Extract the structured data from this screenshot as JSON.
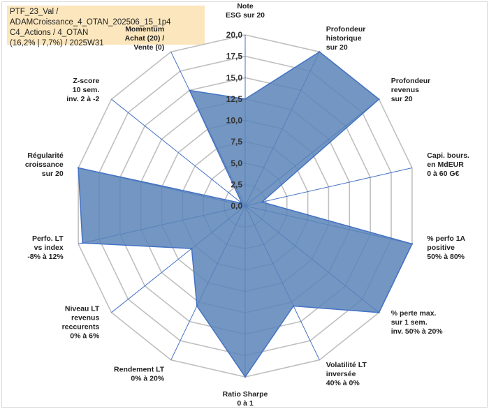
{
  "title": {
    "line1": "PTF_23_Val / ADAMCroissance_4_OTAN_202506_15_1p4",
    "line2": "C4_Actions / 4_OTAN",
    "line3": "(16,2% | 7,7%) / 2025W31"
  },
  "colors": {
    "fill": "#5b84b8",
    "stroke": "#4472c4",
    "grid": "#bfbfbf",
    "axis_line": "#4472c4",
    "title_bg": "#fbe6bd"
  },
  "chart_data": {
    "type": "radar",
    "rmin": 0,
    "rmax": 20,
    "ticks": [
      "0,0",
      "2,5",
      "5,0",
      "7,5",
      "10,0",
      "12,5",
      "15,0",
      "17,5",
      "20,0"
    ],
    "axes": [
      {
        "label": [
          "Note",
          "ESG sur 20"
        ],
        "value": 12.5
      },
      {
        "label": [
          "Profondeur",
          "historique",
          "sur 20"
        ],
        "value": 20
      },
      {
        "label": [
          "Profondeur",
          "revenus",
          "sur 20"
        ],
        "value": 20
      },
      {
        "label": [
          "Capi. bours.",
          "en MdEUR",
          "0 à 60 G€"
        ],
        "value": 2
      },
      {
        "label": [
          "% perfo 1A",
          "positive",
          "50% à 80%"
        ],
        "value": 20
      },
      {
        "label": [
          "% perte max.",
          "sur 1 sem.",
          "inv. 50% à 20%"
        ],
        "value": 20
      },
      {
        "label": [
          "Volatilité LT",
          "inversée",
          "40% à 0%"
        ],
        "value": 13
      },
      {
        "label": [
          "Ratio Sharpe",
          "0 à 1"
        ],
        "value": 20
      },
      {
        "label": [
          "Rendement LT",
          "0% à 20%"
        ],
        "value": 13
      },
      {
        "label": [
          "Niveau LT",
          "revenus",
          "reccurents",
          "0% à 6%"
        ],
        "value": 8
      },
      {
        "label": [
          "Perfo. LT",
          "vs index",
          "-8% à 12%"
        ],
        "value": 19.5
      },
      {
        "label": [
          "Régularité",
          "croissance",
          "sur 20"
        ],
        "value": 20
      },
      {
        "label": [
          "Z-score",
          "10 sem.",
          "inv. 2 à -2"
        ],
        "value": 0.5
      },
      {
        "label": [
          "Momentum",
          "Achat (20) /",
          "Vente (0)"
        ],
        "value": 15
      }
    ]
  }
}
